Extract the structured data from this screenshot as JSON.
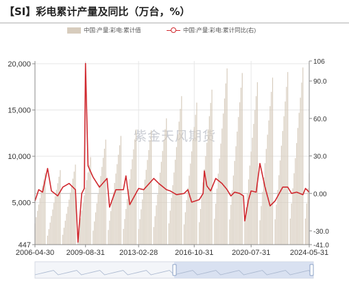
{
  "title": "【SI】彩电累计产量及同比（万台，%）",
  "watermark": "紫金天风期货",
  "colors": {
    "bar": "#d7ccbd",
    "line": "#d0282e",
    "grid": "#e6e6e6",
    "axis": "#888888"
  },
  "legend": [
    {
      "label": "中国:产量:彩电:累计值",
      "kind": "bar"
    },
    {
      "label": "中国:产量:彩电:累计同比(右)",
      "kind": "line"
    }
  ],
  "chart_data": {
    "type": "bar+line",
    "x_start": "2006-04",
    "x_end": "2024-05",
    "x_tick_labels": [
      "2006-04-30",
      "2009-08-31",
      "2013-02-28",
      "2016-10-31",
      "2020-07-31",
      "2024-05-31"
    ],
    "left_axis": {
      "ticks": [
        447,
        5000,
        10000,
        15000,
        20000
      ],
      "tick_labels": [
        "447",
        "5,000",
        "10,000",
        "15,000",
        "20,000"
      ],
      "range": [
        447,
        20300
      ]
    },
    "right_axis": {
      "ticks": [
        -41.0,
        -30.0,
        0.0,
        30.0,
        60.0,
        90.0,
        106
      ],
      "tick_labels": [
        "-41.0",
        "-30.0",
        "0.00",
        "30.0",
        "60.0",
        "90.0",
        "106"
      ],
      "range": [
        -41,
        106
      ]
    },
    "annual_december_cumulative": {
      "years": [
        2006,
        2007,
        2008,
        2009,
        2010,
        2011,
        2012,
        2013,
        2014,
        2015,
        2016,
        2017,
        2018,
        2019,
        2020,
        2021,
        2022,
        2023,
        2024
      ],
      "values": [
        8200,
        8500,
        9100,
        9900,
        11800,
        12200,
        12900,
        12800,
        14100,
        16500,
        15800,
        17200,
        19500,
        19000,
        18000,
        18500,
        19100,
        19600,
        0
      ]
    },
    "series": [
      {
        "name": "中国:产量:彩电:累计值",
        "type": "bar",
        "axis": "left",
        "note": "monthly cumulative, resets each January"
      },
      {
        "name": "中国:产量:彩电:累计同比(右)",
        "type": "line",
        "axis": "right",
        "anchors": [
          [
            "2006-04",
            -6
          ],
          [
            "2006-07",
            3
          ],
          [
            "2006-10",
            1
          ],
          [
            "2007-02",
            20
          ],
          [
            "2007-05",
            2
          ],
          [
            "2007-10",
            -2
          ],
          [
            "2008-02",
            5
          ],
          [
            "2008-07",
            8
          ],
          [
            "2008-12",
            3
          ],
          [
            "2009-02",
            -39
          ],
          [
            "2009-05",
            0
          ],
          [
            "2009-07",
            4
          ],
          [
            "2009-08",
            104
          ],
          [
            "2009-10",
            22
          ],
          [
            "2010-02",
            13
          ],
          [
            "2010-07",
            5
          ],
          [
            "2011-01",
            12
          ],
          [
            "2011-03",
            -11
          ],
          [
            "2011-08",
            3
          ],
          [
            "2012-02",
            3
          ],
          [
            "2012-04",
            14
          ],
          [
            "2012-07",
            -9
          ],
          [
            "2013-02",
            4
          ],
          [
            "2013-06",
            3
          ],
          [
            "2014-02",
            12
          ],
          [
            "2014-06",
            8
          ],
          [
            "2014-12",
            3
          ],
          [
            "2015-03",
            2
          ],
          [
            "2015-08",
            -1
          ],
          [
            "2016-02",
            0
          ],
          [
            "2016-05",
            3
          ],
          [
            "2016-08",
            -7
          ],
          [
            "2017-02",
            -5
          ],
          [
            "2017-05",
            0
          ],
          [
            "2017-06",
            18
          ],
          [
            "2017-08",
            6
          ],
          [
            "2017-11",
            2
          ],
          [
            "2018-03",
            12
          ],
          [
            "2018-08",
            8
          ],
          [
            "2018-12",
            3
          ],
          [
            "2019-03",
            -2
          ],
          [
            "2019-06",
            1
          ],
          [
            "2019-10",
            0
          ],
          [
            "2020-01",
            -2
          ],
          [
            "2020-02",
            -22
          ],
          [
            "2020-05",
            -5
          ],
          [
            "2020-07",
            2
          ],
          [
            "2020-11",
            1
          ],
          [
            "2021-02",
            24
          ],
          [
            "2021-06",
            5
          ],
          [
            "2021-10",
            -10
          ],
          [
            "2022-02",
            -6
          ],
          [
            "2022-08",
            5
          ],
          [
            "2022-12",
            5
          ],
          [
            "2023-03",
            0
          ],
          [
            "2023-07",
            1
          ],
          [
            "2023-12",
            -1
          ],
          [
            "2024-02",
            4
          ],
          [
            "2024-05",
            1
          ]
        ]
      }
    ],
    "grid": true,
    "legend_position": "top"
  }
}
